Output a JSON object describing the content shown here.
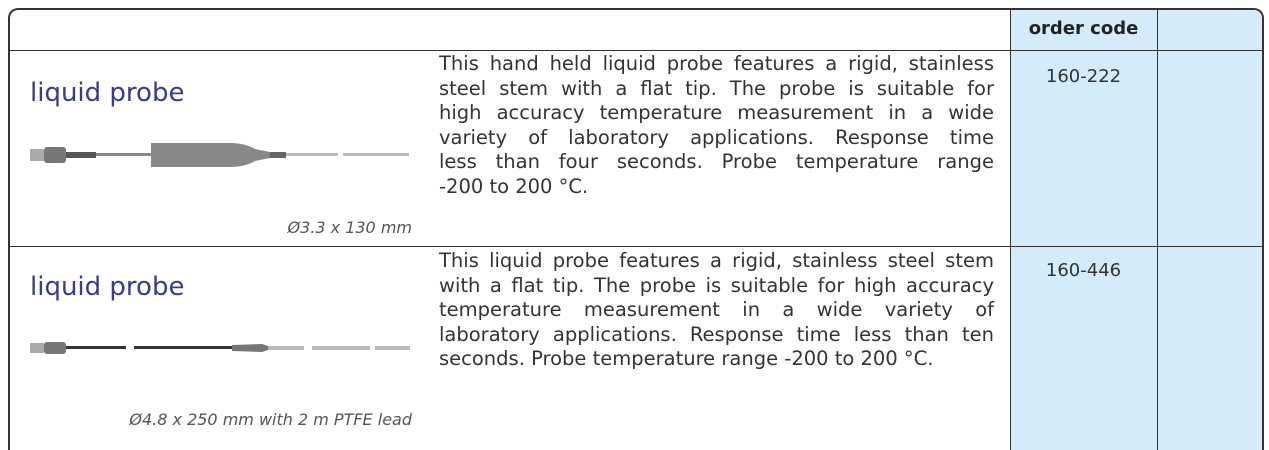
{
  "table": {
    "header": {
      "order_code": "order code"
    },
    "rows": [
      {
        "title": "liquid probe",
        "dimension": "Ø3.3 x 130 mm",
        "description": [
          "This hand held liquid probe features a rigid, stainless",
          "steel stem with a flat tip.  The probe is suitable for",
          "high accuracy temperature measurement in a wide",
          "variety of laboratory  applications.  Response time",
          "less than four seconds.  Probe temperature range",
          "-200 to 200 °C."
        ],
        "order_code": "160-222"
      },
      {
        "title": "liquid probe",
        "dimension": "Ø4.8 x 250 mm with 2 m PTFE lead",
        "description": [
          "This liquid probe features a rigid, stainless steel stem",
          "with a flat tip.  The probe is suitable for high accuracy",
          "temperature measurement in a wide variety of",
          "laboratory applications. Response time less than ten",
          "seconds.  Probe temperature range -200 to 200 °C."
        ],
        "order_code": "160-446"
      }
    ]
  }
}
